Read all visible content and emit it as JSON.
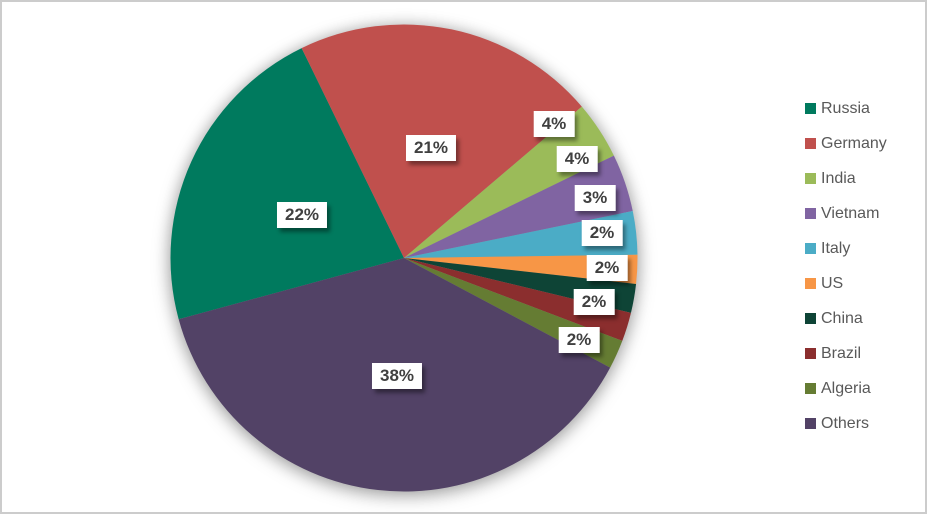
{
  "chart_data": {
    "type": "pie",
    "title": "",
    "categories": [
      "Russia",
      "Germany",
      "India",
      "Vietnam",
      "Italy",
      "US",
      "China",
      "Brazil",
      "Algeria",
      "Others"
    ],
    "values": [
      22,
      21,
      4,
      4,
      3,
      2,
      2,
      2,
      2,
      38
    ],
    "labels": [
      "22%",
      "21%",
      "4%",
      "4%",
      "3%",
      "2%",
      "2%",
      "2%",
      "2%",
      "38%"
    ],
    "colors": [
      "#007A5E",
      "#C0504D",
      "#9BBB59",
      "#8064A2",
      "#4BACC6",
      "#F79646",
      "#0E4436",
      "#8B2E2E",
      "#657C33",
      "#524266"
    ],
    "legend_position": "right",
    "start_angle_deg": 254.8,
    "direction": "clockwise"
  },
  "style_colors": {
    "background": "#ffffff",
    "frame_border": "#cccccc",
    "data_label_text": "#404040",
    "data_label_background": "#ffffff",
    "legend_text": "#595959"
  }
}
